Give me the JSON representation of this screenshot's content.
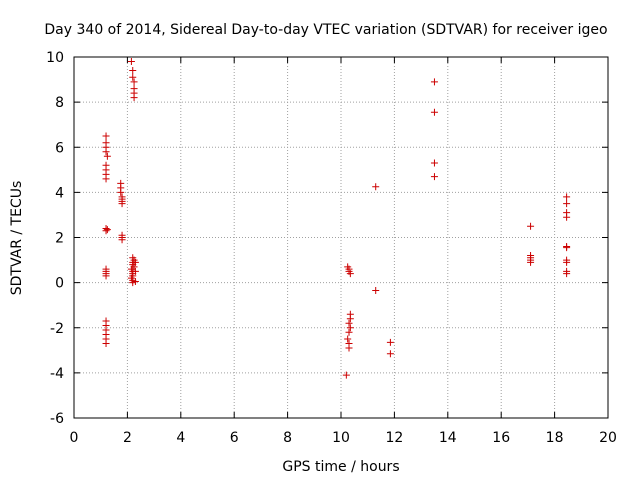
{
  "chart_data": {
    "type": "scatter",
    "title": "Day 340 of 2014, Sidereal Day-to-day VTEC variation (SDTVAR) for receiver igeo",
    "xlabel": "GPS time / hours",
    "ylabel": "SDTVAR / TECUs",
    "xlim": [
      0,
      20
    ],
    "ylim": [
      -6,
      10
    ],
    "xticks": [
      "0",
      "2",
      "4",
      "6",
      "8",
      "10",
      "12",
      "14",
      "16",
      "18",
      "20"
    ],
    "yticks": [
      "-6",
      "-4",
      "-2",
      "0",
      "2",
      "4",
      "6",
      "8",
      "10"
    ],
    "grid": true,
    "marker": "+",
    "color": "#cc0000",
    "series": [
      {
        "name": "SDTVAR",
        "points": [
          [
            1.2,
            6.5
          ],
          [
            1.2,
            6.2
          ],
          [
            1.2,
            6.0
          ],
          [
            1.2,
            5.8
          ],
          [
            1.25,
            5.6
          ],
          [
            1.2,
            5.2
          ],
          [
            1.2,
            5.0
          ],
          [
            1.2,
            4.8
          ],
          [
            1.2,
            4.6
          ],
          [
            1.2,
            2.4
          ],
          [
            1.2,
            2.3
          ],
          [
            1.25,
            2.35
          ],
          [
            1.2,
            0.6
          ],
          [
            1.2,
            0.5
          ],
          [
            1.2,
            0.4
          ],
          [
            1.2,
            0.3
          ],
          [
            1.2,
            -1.7
          ],
          [
            1.2,
            -1.9
          ],
          [
            1.2,
            -2.1
          ],
          [
            1.2,
            -2.3
          ],
          [
            1.2,
            -2.5
          ],
          [
            1.2,
            -2.7
          ],
          [
            1.75,
            4.4
          ],
          [
            1.75,
            4.2
          ],
          [
            1.75,
            4.0
          ],
          [
            1.8,
            3.8
          ],
          [
            1.8,
            3.7
          ],
          [
            1.8,
            3.6
          ],
          [
            1.8,
            3.5
          ],
          [
            1.8,
            2.1
          ],
          [
            1.8,
            2.0
          ],
          [
            1.8,
            1.9
          ],
          [
            2.15,
            9.8
          ],
          [
            2.2,
            9.4
          ],
          [
            2.2,
            9.1
          ],
          [
            2.25,
            8.9
          ],
          [
            2.25,
            8.6
          ],
          [
            2.25,
            8.4
          ],
          [
            2.25,
            8.2
          ],
          [
            2.2,
            1.1
          ],
          [
            2.25,
            1.0
          ],
          [
            2.2,
            0.9
          ],
          [
            2.2,
            0.8
          ],
          [
            2.25,
            0.7
          ],
          [
            2.15,
            0.6
          ],
          [
            2.2,
            0.5
          ],
          [
            2.2,
            0.4
          ],
          [
            2.2,
            0.3
          ],
          [
            2.15,
            0.2
          ],
          [
            2.2,
            0.1
          ],
          [
            2.2,
            0.0
          ],
          [
            2.3,
            0.05
          ],
          [
            2.3,
            0.5
          ],
          [
            2.3,
            0.9
          ],
          [
            10.25,
            0.7
          ],
          [
            10.3,
            0.6
          ],
          [
            10.3,
            0.5
          ],
          [
            10.35,
            0.4
          ],
          [
            10.35,
            -1.4
          ],
          [
            10.35,
            -1.6
          ],
          [
            10.3,
            -1.8
          ],
          [
            10.35,
            -2.0
          ],
          [
            10.3,
            -2.2
          ],
          [
            10.25,
            -2.5
          ],
          [
            10.3,
            -2.7
          ],
          [
            10.3,
            -2.9
          ],
          [
            10.2,
            -4.1
          ],
          [
            11.3,
            4.25
          ],
          [
            11.3,
            -0.35
          ],
          [
            11.85,
            -2.65
          ],
          [
            11.85,
            -3.15
          ],
          [
            13.5,
            8.9
          ],
          [
            13.5,
            7.55
          ],
          [
            13.5,
            5.3
          ],
          [
            13.5,
            4.7
          ],
          [
            17.1,
            2.5
          ],
          [
            17.1,
            1.2
          ],
          [
            17.1,
            1.1
          ],
          [
            17.1,
            1.0
          ],
          [
            17.1,
            0.9
          ],
          [
            18.45,
            3.8
          ],
          [
            18.45,
            3.5
          ],
          [
            18.45,
            3.1
          ],
          [
            18.45,
            2.9
          ],
          [
            18.45,
            1.6
          ],
          [
            18.45,
            1.55
          ],
          [
            18.45,
            1.0
          ],
          [
            18.45,
            0.9
          ],
          [
            18.45,
            0.5
          ],
          [
            18.45,
            0.4
          ]
        ]
      }
    ]
  }
}
